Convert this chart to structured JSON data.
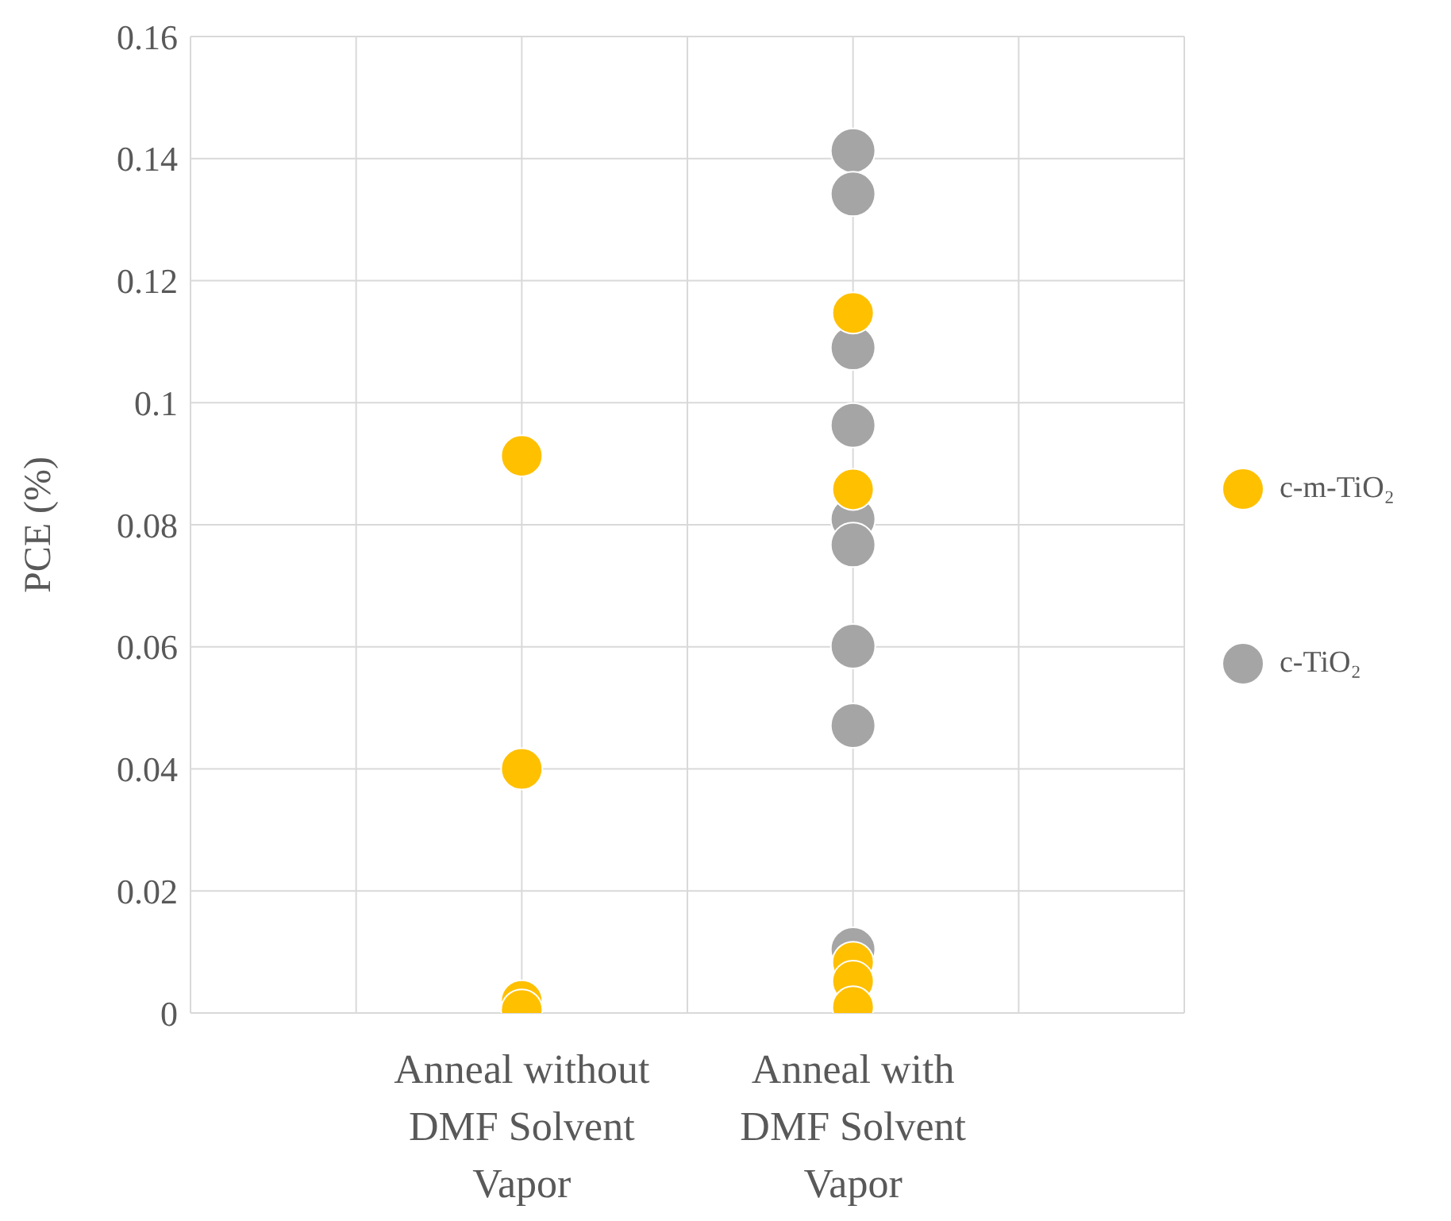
{
  "chart_data": {
    "type": "scatter",
    "ylabel": "PCE (%)",
    "categories": [
      null,
      null,
      "Anneal without DMF Solvent Vapor",
      null,
      "Anneal with DMF Solvent Vapor",
      null,
      null
    ],
    "ylim": [
      0,
      0.16
    ],
    "yticks": [
      0,
      0.02,
      0.04,
      0.06,
      0.08,
      0.1,
      0.12,
      0.14,
      0.16
    ],
    "grid": true,
    "legend": "right",
    "marker": "circle",
    "series": [
      {
        "name": "c-TiO₂",
        "color": "#a5a5a5",
        "x": [
          "Anneal with DMF Solvent Vapor",
          "Anneal with DMF Solvent Vapor",
          "Anneal with DMF Solvent Vapor",
          "Anneal with DMF Solvent Vapor",
          "Anneal with DMF Solvent Vapor",
          "Anneal with DMF Solvent Vapor",
          "Anneal with DMF Solvent Vapor",
          "Anneal with DMF Solvent Vapor",
          "Anneal with DMF Solvent Vapor"
        ],
        "values": [
          0.1413,
          0.1342,
          0.109,
          0.0963,
          0.0809,
          0.0767,
          0.0601,
          0.0471,
          0.0104
        ]
      },
      {
        "name": "c-m-TiO₂",
        "color": "#ffc000",
        "x": [
          "Anneal without DMF Solvent Vapor",
          "Anneal without DMF Solvent Vapor",
          "Anneal without DMF Solvent Vapor",
          "Anneal without DMF Solvent Vapor",
          "Anneal with DMF Solvent Vapor",
          "Anneal with DMF Solvent Vapor",
          "Anneal with DMF Solvent Vapor",
          "Anneal with DMF Solvent Vapor",
          "Anneal with DMF Solvent Vapor"
        ],
        "values": [
          0.0913,
          0.04,
          0.002,
          0.0005,
          0.1147,
          0.0858,
          0.0083,
          0.0052,
          0.001
        ]
      }
    ]
  }
}
